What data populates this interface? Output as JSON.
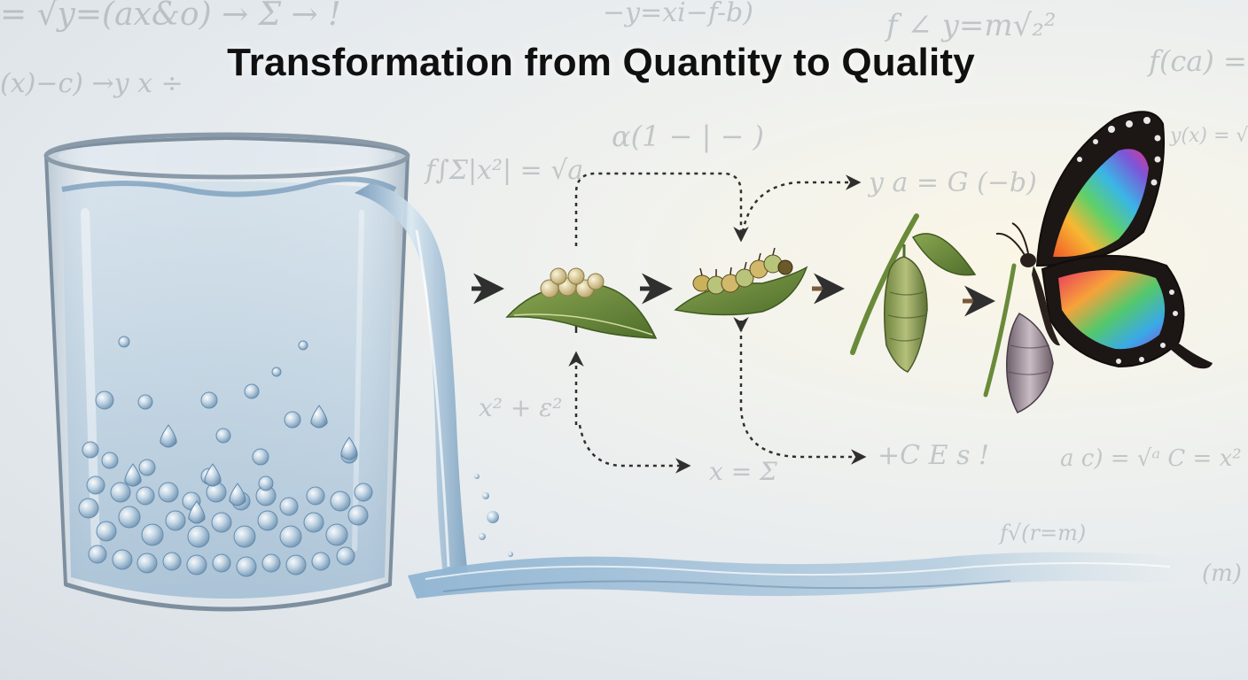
{
  "title": "Transformation from Quantity to Quality",
  "background_formulas": [
    "= √y=(ax&o) → Σ → !",
    "−y=xi−f-b)",
    "f ∠ y=m√₂²",
    "f(ca) =",
    "(x)−c) →y x ÷",
    "f∫Σ|x²| = √a",
    "α(1 − | − )",
    "y a = G (−b)",
    "y(x) = √(x)",
    "x² + ε²",
    "x = Σ",
    "+C E s !",
    "a c) = √ᵃ C = x²",
    "f√(r=m)",
    "(m)"
  ],
  "stages": [
    "water glass",
    "eggs on leaf",
    "caterpillar on leaf",
    "chrysalis",
    "butterfly"
  ],
  "colors": {
    "title": "#101010",
    "water": "#7fa7c7",
    "leaf": "#6a8a3a",
    "arrow": "#3a3a3a",
    "arrow_brown": "#7a5a3a"
  }
}
